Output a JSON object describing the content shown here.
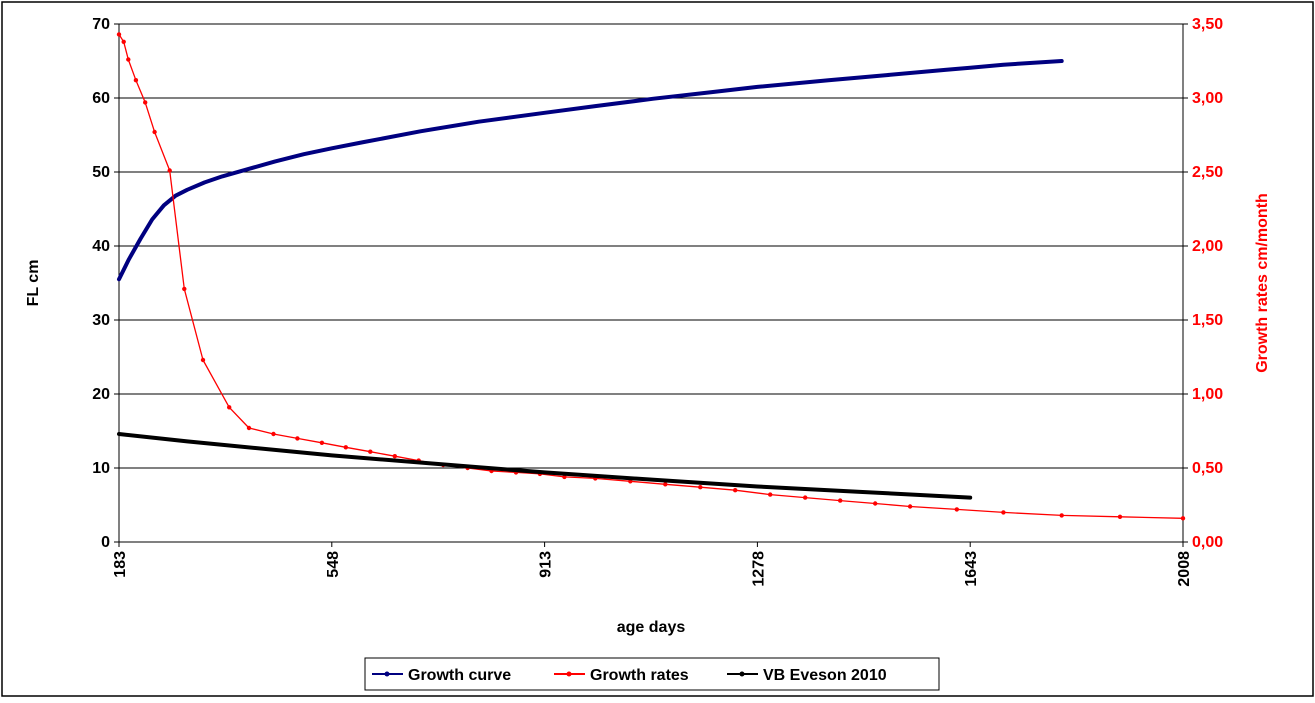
{
  "chart_data": {
    "type": "line",
    "title": "",
    "xlabel": "age days",
    "ylabel": "FL cm",
    "y2label": "Growth rates cm/month",
    "xlim": [
      183,
      2008
    ],
    "ylim": [
      0,
      70
    ],
    "y2lim": [
      0,
      3.5
    ],
    "x_ticks": [
      "183",
      "548",
      "913",
      "1278",
      "1643",
      "2008"
    ],
    "y_ticks": [
      "0",
      "10",
      "20",
      "30",
      "40",
      "50",
      "60",
      "70"
    ],
    "y2_ticks": [
      "0,00",
      "0,50",
      "1,00",
      "1,50",
      "2,00",
      "2,50",
      "3,00",
      "3,50"
    ],
    "grid": true,
    "legend_position": "bottom",
    "series": [
      {
        "name": "Growth curve",
        "axis": "left",
        "color": "#000080",
        "x": [
          183,
          200,
          220,
          240,
          260,
          280,
          300,
          330,
          360,
          400,
          450,
          500,
          548,
          600,
          700,
          800,
          913,
          1000,
          1100,
          1200,
          1278,
          1400,
          1500,
          1600,
          1643,
          1700,
          1800
        ],
        "y": [
          35.5,
          38.2,
          41.0,
          43.6,
          45.5,
          46.8,
          47.6,
          48.6,
          49.4,
          50.3,
          51.4,
          52.4,
          53.2,
          54.0,
          55.5,
          56.8,
          58.0,
          58.9,
          59.9,
          60.8,
          61.5,
          62.4,
          63.1,
          63.8,
          64.1,
          64.5,
          65.0
        ]
      },
      {
        "name": "Growth rates",
        "axis": "right",
        "color": "#ff0000",
        "x": [
          183,
          191,
          199,
          212,
          228,
          244,
          270,
          295,
          327,
          372,
          406,
          448,
          489,
          531,
          572,
          614,
          656,
          697,
          739,
          781,
          822,
          864,
          905,
          947,
          1000,
          1060,
          1120,
          1180,
          1240,
          1300,
          1360,
          1420,
          1480,
          1540,
          1620,
          1700,
          1800,
          1900,
          2008
        ],
        "y": [
          3.43,
          3.38,
          3.26,
          3.12,
          2.97,
          2.77,
          2.51,
          1.71,
          1.23,
          0.91,
          0.77,
          0.73,
          0.7,
          0.67,
          0.64,
          0.61,
          0.58,
          0.55,
          0.52,
          0.5,
          0.48,
          0.47,
          0.46,
          0.44,
          0.43,
          0.41,
          0.39,
          0.37,
          0.35,
          0.32,
          0.3,
          0.28,
          0.26,
          0.24,
          0.22,
          0.2,
          0.18,
          0.17,
          0.16
        ]
      },
      {
        "name": "VB Eveson 2010",
        "axis": "left",
        "color": "#000000",
        "x": [
          183,
          300,
          548,
          800,
          913,
          1100,
          1278,
          1450,
          1643
        ],
        "y": [
          14.6,
          13.6,
          11.7,
          10.1,
          9.4,
          8.4,
          7.5,
          6.8,
          6.0
        ]
      }
    ]
  }
}
